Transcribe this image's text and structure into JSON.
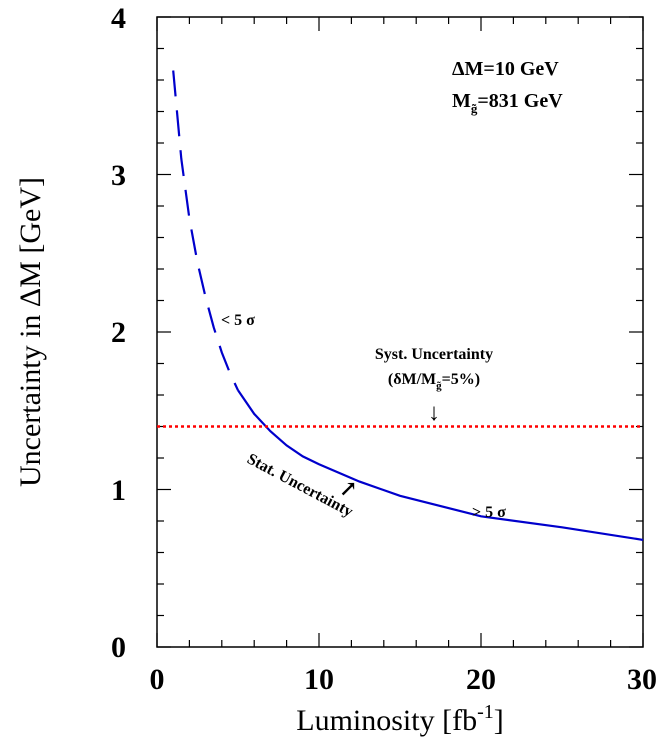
{
  "chart_data": {
    "type": "line",
    "xlabel": "Luminosity [fb",
    "xlabel_sup": "-1",
    "xlabel_close": "]",
    "ylabel": "Uncertainty in ΔM [GeV]",
    "xlim": [
      0,
      30
    ],
    "ylim": [
      0,
      4
    ],
    "x_ticks": [
      "0",
      "10",
      "20",
      "30"
    ],
    "y_ticks": [
      "0",
      "1",
      "2",
      "3",
      "4"
    ],
    "grid": false,
    "series": [
      {
        "style": "dashed",
        "color": "#0000cc",
        "points": [
          [
            1,
            3.66
          ],
          [
            1.5,
            3.1
          ],
          [
            2,
            2.72
          ],
          [
            2.5,
            2.44
          ],
          [
            3,
            2.22
          ],
          [
            3.5,
            2.03
          ],
          [
            4,
            1.87
          ],
          [
            4.5,
            1.74
          ],
          [
            5,
            1.63
          ]
        ]
      },
      {
        "style": "solid",
        "color": "#0000cc",
        "points": [
          [
            5,
            1.63
          ],
          [
            6,
            1.48
          ],
          [
            7,
            1.37
          ],
          [
            8,
            1.28
          ],
          [
            9,
            1.21
          ],
          [
            10,
            1.16
          ],
          [
            12.5,
            1.05
          ],
          [
            15,
            0.96
          ],
          [
            20,
            0.83
          ],
          [
            25,
            0.76
          ],
          [
            30,
            0.68
          ]
        ]
      },
      {
        "style": "dotted",
        "color": "#ff0000",
        "points": [
          [
            0,
            1.4
          ],
          [
            30,
            1.4
          ]
        ]
      }
    ],
    "annotations": {
      "dm_label": "ΔM=10 GeV",
      "mass_label_prefix": "M",
      "mass_label_sub": "g̃",
      "mass_label_suffix": "=831 GeV",
      "below_5sigma": "< 5 σ",
      "above_5sigma": "> 5 σ",
      "syst_label": "Syst. Uncertainty",
      "syst_sub_prefix": "(δM/M",
      "syst_sub_sub": "g̃",
      "syst_sub_suffix": "=5%)",
      "stat_label": "Stat. Uncertainty",
      "arrow_down": "↓",
      "arrow_up": "↗"
    }
  }
}
